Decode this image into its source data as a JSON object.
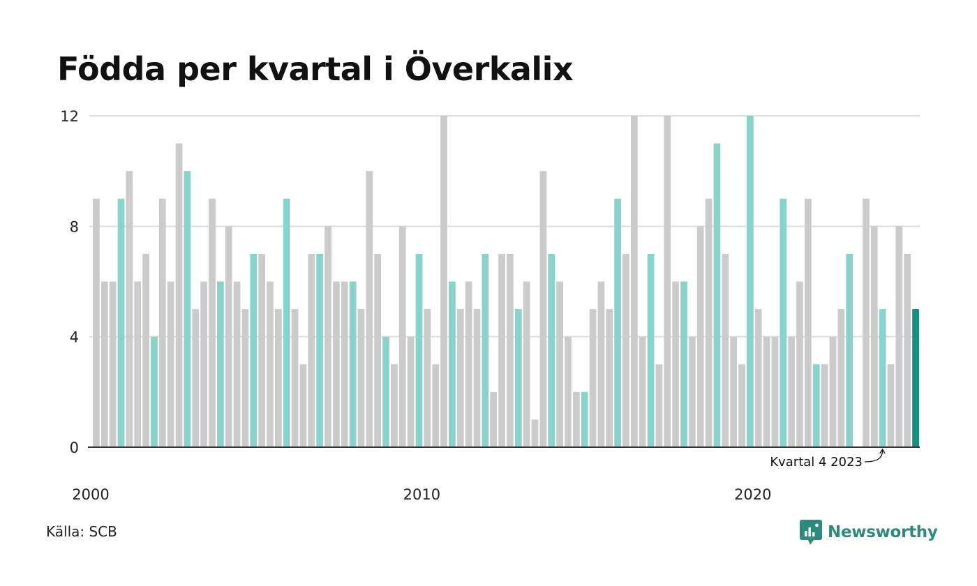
{
  "title": "Födda per kvartal i Överkalix",
  "source": "Källa: SCB",
  "brand": {
    "name": "Newsworthy",
    "icon": "newsworthy-logo-icon",
    "color": "#2b8c7e"
  },
  "chart_data": {
    "type": "bar",
    "title": "Födda per kvartal i Överkalix",
    "xlabel": "",
    "ylabel": "",
    "ylim": [
      0,
      12
    ],
    "yticks": [
      0,
      4,
      8,
      12
    ],
    "xticks": [
      {
        "label": "2000",
        "index": 0
      },
      {
        "label": "2010",
        "index": 40
      },
      {
        "label": "2020",
        "index": 80
      }
    ],
    "grid": true,
    "colors": {
      "default": "#cbcbcb",
      "q4": "#88d3ca",
      "latest": "#15907f",
      "grid": "#dddddd",
      "axis": "#333333"
    },
    "highlight_quarter": 4,
    "annotation": {
      "label": "Kvartal 4 2023",
      "index": 95
    },
    "series": [
      {
        "values": [
          9,
          6,
          6,
          9,
          10,
          6,
          7,
          4,
          9,
          6,
          11,
          10,
          5,
          6,
          9,
          6,
          8,
          6,
          5,
          7,
          7,
          6,
          5,
          9,
          5,
          3,
          7,
          7,
          8,
          6,
          6,
          6,
          5,
          10,
          7,
          4,
          3,
          8,
          4,
          7,
          5,
          3,
          12,
          6,
          5,
          6,
          5,
          7,
          2,
          7,
          7,
          5,
          6,
          1,
          10,
          7,
          6,
          4,
          2,
          2,
          5,
          6,
          5,
          9,
          7,
          12,
          4,
          7,
          3,
          12,
          6,
          6,
          4,
          8,
          9,
          11,
          7,
          4,
          3,
          12,
          5,
          4,
          4,
          9,
          4,
          6,
          9,
          3,
          3,
          4,
          5,
          7,
          0,
          9,
          8,
          5,
          3,
          8,
          7,
          5
        ]
      }
    ]
  }
}
